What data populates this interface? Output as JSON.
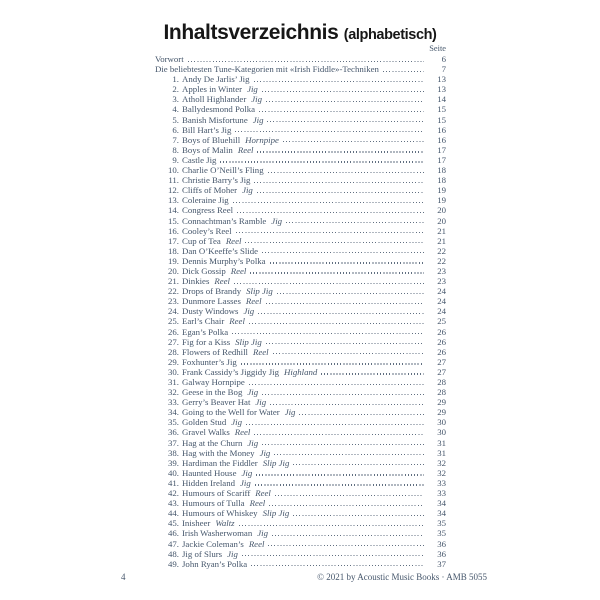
{
  "page": {
    "title": "Inhaltsverzeichnis",
    "title_suffix": "(alphabetisch)",
    "column_header": "Seite",
    "footer_page_number": "4",
    "footer_copyright": "© 2021 by Acoustic Music Books · AMB 5055",
    "colors": {
      "text": "#45566b",
      "title": "#171717",
      "background": "#ffffff"
    }
  },
  "toc": {
    "entries": [
      {
        "num": "",
        "title": "Vorwort",
        "type": "",
        "page": "6"
      },
      {
        "num": "",
        "title": "Die beliebtesten Tune-Kategorien mit «Irish Fiddle»-Techniken",
        "type": "",
        "page": "7"
      },
      {
        "num": "1.",
        "title": "Andy De Jarlis’ Jig",
        "type": "",
        "page": "13"
      },
      {
        "num": "2.",
        "title": "Apples in Winter",
        "type": "Jig",
        "page": "13"
      },
      {
        "num": "3.",
        "title": "Atholl Highlander",
        "type": "Jig",
        "page": "14"
      },
      {
        "num": "4.",
        "title": "Ballydesmond Polka",
        "type": "",
        "page": "15"
      },
      {
        "num": "5.",
        "title": "Banish Misfortune",
        "type": "Jig",
        "page": "15"
      },
      {
        "num": "6.",
        "title": "Bill Hart’s Jig",
        "type": "",
        "page": "16"
      },
      {
        "num": "7.",
        "title": "Boys of Bluehill",
        "type": "Hornpipe",
        "page": "16"
      },
      {
        "num": "8.",
        "title": "Boys of Malin",
        "type": "Reel",
        "page": "17"
      },
      {
        "num": "9.",
        "title": "Castle Jig",
        "type": "",
        "page": "17"
      },
      {
        "num": "10.",
        "title": "Charlie O’Neill’s Fling",
        "type": "",
        "page": "18"
      },
      {
        "num": "11.",
        "title": "Christie Barry’s Jig",
        "type": "",
        "page": "18"
      },
      {
        "num": "12.",
        "title": "Cliffs of Moher",
        "type": "Jig",
        "page": "19"
      },
      {
        "num": "13.",
        "title": "Coleraine Jig",
        "type": "",
        "page": "19"
      },
      {
        "num": "14.",
        "title": "Congress Reel",
        "type": "",
        "page": "20"
      },
      {
        "num": "15.",
        "title": "Connachtman’s Ramble",
        "type": "Jig",
        "page": "20"
      },
      {
        "num": "16.",
        "title": "Cooley’s Reel",
        "type": "",
        "page": "21"
      },
      {
        "num": "17.",
        "title": "Cup of Tea",
        "type": "Reel",
        "page": "21"
      },
      {
        "num": "18.",
        "title": "Dan O’Keeffe’s Slide",
        "type": "",
        "page": "22"
      },
      {
        "num": "19.",
        "title": "Dennis Murphy’s Polka",
        "type": "",
        "page": "22"
      },
      {
        "num": "20.",
        "title": "Dick Gossip",
        "type": "Reel",
        "page": "23"
      },
      {
        "num": "21.",
        "title": "Dinkies",
        "type": "Reel",
        "page": "23"
      },
      {
        "num": "22.",
        "title": "Drops of Brandy",
        "type": "Slip Jig",
        "page": "24"
      },
      {
        "num": "23.",
        "title": "Dunmore Lasses",
        "type": "Reel",
        "page": "24"
      },
      {
        "num": "24.",
        "title": "Dusty Windows",
        "type": "Jig",
        "page": "24"
      },
      {
        "num": "25.",
        "title": "Earl’s Chair",
        "type": "Reel",
        "page": "25"
      },
      {
        "num": "26.",
        "title": "Egan’s Polka",
        "type": "",
        "page": "26"
      },
      {
        "num": "27.",
        "title": "Fig for a Kiss",
        "type": "Slip Jig",
        "page": "26"
      },
      {
        "num": "28.",
        "title": "Flowers of Redhill",
        "type": "Reel",
        "page": "26"
      },
      {
        "num": "29.",
        "title": "Foxhunter’s Jig",
        "type": "",
        "page": "27"
      },
      {
        "num": "30.",
        "title": "Frank Cassidy’s Jiggidy Jig",
        "type": "Highland",
        "page": "27"
      },
      {
        "num": "31.",
        "title": "Galway Hornpipe",
        "type": "",
        "page": "28"
      },
      {
        "num": "32.",
        "title": "Geese in the Bog",
        "type": "Jig",
        "page": "28"
      },
      {
        "num": "33.",
        "title": "Gerry’s Beaver Hat",
        "type": "Jig",
        "page": "29"
      },
      {
        "num": "34.",
        "title": "Going to the Well for Water",
        "type": "Jig",
        "page": "29"
      },
      {
        "num": "35.",
        "title": "Golden Stud",
        "type": "Jig",
        "page": "30"
      },
      {
        "num": "36.",
        "title": "Gravel Walks",
        "type": "Reel",
        "page": "30"
      },
      {
        "num": "37.",
        "title": "Hag at the Churn",
        "type": "Jig",
        "page": "31"
      },
      {
        "num": "38.",
        "title": "Hag with the Money",
        "type": "Jig",
        "page": "31"
      },
      {
        "num": "39.",
        "title": "Hardiman the Fiddler",
        "type": "Slip Jig",
        "page": "32"
      },
      {
        "num": "40.",
        "title": "Haunted House",
        "type": "Jig",
        "page": "32"
      },
      {
        "num": "41.",
        "title": "Hidden Ireland",
        "type": "Jig",
        "page": "33"
      },
      {
        "num": "42.",
        "title": "Humours of Scariff",
        "type": "Reel",
        "page": "33"
      },
      {
        "num": "43.",
        "title": "Humours of Tulla",
        "type": "Reel",
        "page": "34"
      },
      {
        "num": "44.",
        "title": "Humours of Whiskey",
        "type": "Slip Jig",
        "page": "34"
      },
      {
        "num": "45.",
        "title": "Inisheer",
        "type": "Waltz",
        "page": "35"
      },
      {
        "num": "46.",
        "title": "Irish Washerwoman",
        "type": "Jig",
        "page": "35"
      },
      {
        "num": "47.",
        "title": "Jackie Coleman’s",
        "type": "Reel",
        "page": "36"
      },
      {
        "num": "48.",
        "title": "Jig of Slurs",
        "type": "Jig",
        "page": "36"
      },
      {
        "num": "49.",
        "title": "John Ryan’s Polka",
        "type": "",
        "page": "37"
      }
    ]
  }
}
